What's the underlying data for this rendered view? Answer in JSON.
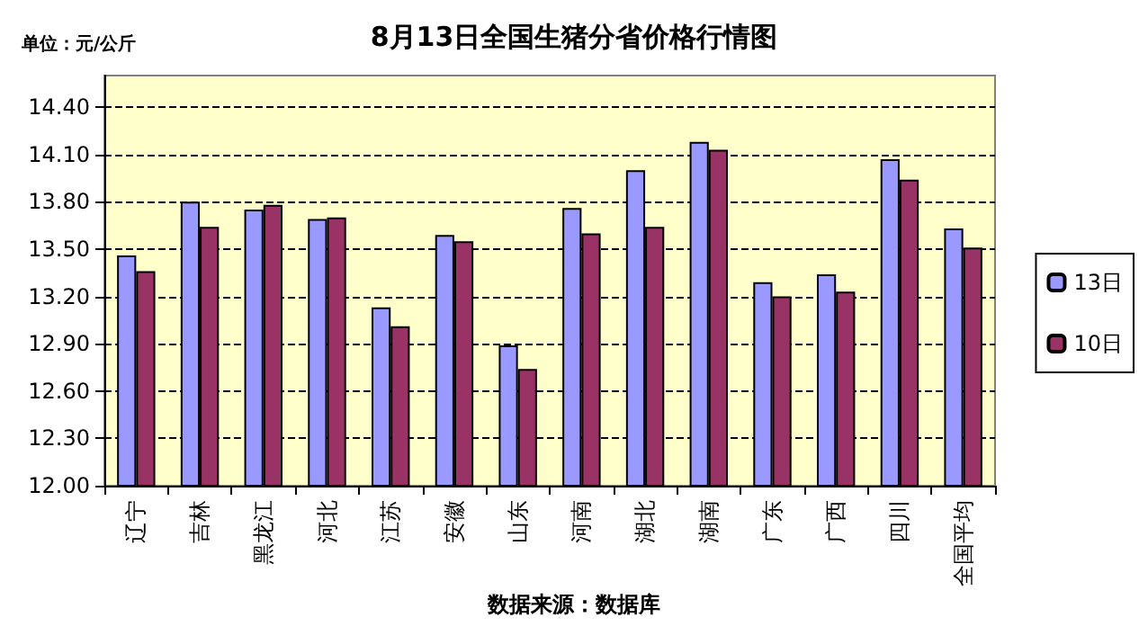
{
  "chart_data": {
    "type": "bar",
    "title": "8月13日全国生猪分省价格行情图",
    "ylabel": "单位：元/公斤",
    "annotations": [
      "数据来源：数据库"
    ],
    "categories": [
      "辽宁",
      "吉林",
      "黑龙江",
      "河北",
      "江苏",
      "安徽",
      "山东",
      "河南",
      "湖北",
      "湖南",
      "广东",
      "广西",
      "四川",
      "全国平均"
    ],
    "series": [
      {
        "name": "13日",
        "color": "#9999ff",
        "values": [
          13.46,
          13.8,
          13.75,
          13.69,
          13.13,
          13.59,
          12.89,
          13.76,
          14.0,
          14.18,
          13.29,
          13.34,
          14.07,
          13.63
        ]
      },
      {
        "name": "10日",
        "color": "#993366",
        "values": [
          13.36,
          13.64,
          13.78,
          13.7,
          13.01,
          13.55,
          12.74,
          13.6,
          13.64,
          14.13,
          13.2,
          13.23,
          13.94,
          13.51
        ]
      }
    ],
    "ylim": [
      12,
      14.6
    ],
    "yticks": [
      {
        "value": 12,
        "label": "12.00"
      },
      {
        "value": 12.3,
        "label": "12.30"
      },
      {
        "value": 12.6,
        "label": "12.60"
      },
      {
        "value": 12.9,
        "label": "12.90"
      },
      {
        "value": 13.2,
        "label": "13.20"
      },
      {
        "value": 13.5,
        "label": "13.50"
      },
      {
        "value": 13.8,
        "label": "13.80"
      },
      {
        "value": 14.1,
        "label": "14.10"
      },
      {
        "value": 14.4,
        "label": "14.40"
      }
    ],
    "grid": "y",
    "legend": "right"
  }
}
